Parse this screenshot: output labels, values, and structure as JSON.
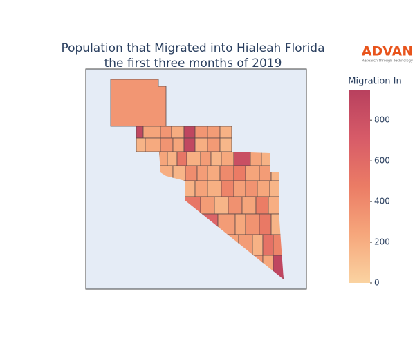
{
  "chart_data": {
    "type": "choropleth",
    "title": [
      "Population that Migrated into Hialeah Florida",
      "the first three months of 2019"
    ],
    "values": [
      330,
      880,
      250,
      330,
      210,
      900,
      330,
      300,
      180,
      170,
      220,
      340,
      250,
      880,
      200,
      310,
      150,
      250,
      180,
      520,
      190,
      300,
      160,
      230,
      820,
      250,
      180,
      200,
      160,
      380,
      290,
      220,
      400,
      480,
      250,
      300,
      160,
      180,
      260,
      190,
      430,
      280,
      350,
      240,
      160,
      520,
      300,
      160,
      360,
      250,
      470,
      200,
      650,
      300,
      230,
      350,
      500,
      170,
      260,
      300,
      180,
      550,
      430,
      330,
      240,
      900
    ],
    "colorbar": {
      "title": "Migration In",
      "range": [
        0,
        950
      ],
      "ticks": [
        0,
        200,
        400,
        600,
        800
      ],
      "colorscale": [
        "#fad3a1",
        "#f6a77c",
        "#eb7c65",
        "#d75b68",
        "#b8405e"
      ]
    }
  },
  "logo": {
    "name": "ADVAN",
    "tagline": "Research through Technology"
  }
}
